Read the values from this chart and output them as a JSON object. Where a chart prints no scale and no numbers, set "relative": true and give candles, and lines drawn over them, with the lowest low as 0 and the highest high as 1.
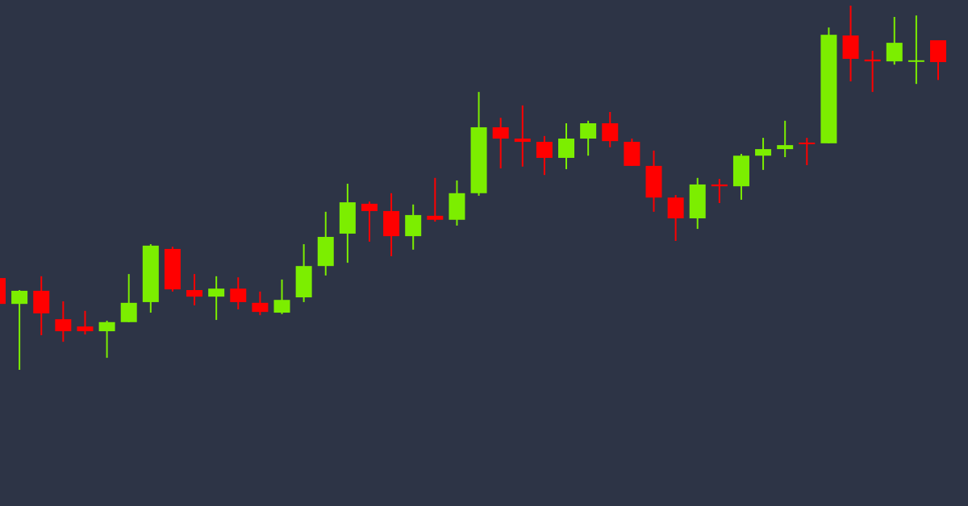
{
  "chart_data": {
    "type": "candlestick",
    "relative": true,
    "categories": [
      null,
      null,
      null,
      null,
      null,
      null,
      null,
      null,
      null,
      null,
      null,
      null,
      null,
      null,
      null,
      null,
      null,
      null,
      null,
      null,
      null,
      null,
      null,
      null,
      null,
      null,
      null,
      null,
      null,
      null,
      null,
      null,
      null,
      null,
      null,
      null,
      null,
      null,
      null,
      null,
      null,
      null,
      null,
      null
    ],
    "ohlc": [
      [
        0.252,
        0.257,
        0.175,
        0.181
      ],
      [
        0.181,
        0.219,
        0,
        0.217
      ],
      [
        0.217,
        0.257,
        0.095,
        0.155
      ],
      [
        0.139,
        0.188,
        0.077,
        0.106
      ],
      [
        0.119,
        0.162,
        0.097,
        0.106
      ],
      [
        0.106,
        0.135,
        0.033,
        0.131
      ],
      [
        0.131,
        0.263,
        0.131,
        0.184
      ],
      [
        0.186,
        0.345,
        0.157,
        0.341
      ],
      [
        0.332,
        0.338,
        0.215,
        0.221
      ],
      [
        0.219,
        0.263,
        0.177,
        0.201
      ],
      [
        0.201,
        0.257,
        0.137,
        0.223
      ],
      [
        0.223,
        0.254,
        0.166,
        0.186
      ],
      [
        0.184,
        0.215,
        0.15,
        0.159
      ],
      [
        0.157,
        0.248,
        0.153,
        0.192
      ],
      [
        0.199,
        0.345,
        0.186,
        0.285
      ],
      [
        0.285,
        0.434,
        0.259,
        0.365
      ],
      [
        0.374,
        0.511,
        0.294,
        0.46
      ],
      [
        0.456,
        0.462,
        0.352,
        0.436
      ],
      [
        0.436,
        0.485,
        0.312,
        0.367
      ],
      [
        0.367,
        0.454,
        0.33,
        0.425
      ],
      [
        0.423,
        0.527,
        0.407,
        0.412
      ],
      [
        0.412,
        0.52,
        0.396,
        0.485
      ],
      [
        0.485,
        0.763,
        0.478,
        0.666
      ],
      [
        0.666,
        0.692,
        0.553,
        0.635
      ],
      [
        0.635,
        0.726,
        0.558,
        0.626
      ],
      [
        0.626,
        0.642,
        0.535,
        0.582
      ],
      [
        0.582,
        0.677,
        0.551,
        0.635
      ],
      [
        0.635,
        0.684,
        0.588,
        0.677
      ],
      [
        0.677,
        0.708,
        0.611,
        0.628
      ],
      [
        0.626,
        0.635,
        0.56,
        0.56
      ],
      [
        0.56,
        0.602,
        0.434,
        0.473
      ],
      [
        0.473,
        0.48,
        0.354,
        0.416
      ],
      [
        0.416,
        0.527,
        0.387,
        0.509
      ],
      [
        0.509,
        0.524,
        0.458,
        0.504
      ],
      [
        0.504,
        0.593,
        0.467,
        0.588
      ],
      [
        0.588,
        0.637,
        0.549,
        0.606
      ],
      [
        0.606,
        0.684,
        0.584,
        0.617
      ],
      [
        0.624,
        0.637,
        0.562,
        0.622
      ],
      [
        0.622,
        0.94,
        0.622,
        0.92
      ],
      [
        0.918,
        1.0,
        0.792,
        0.854
      ],
      [
        0.852,
        0.876,
        0.763,
        0.847
      ],
      [
        0.847,
        0.969,
        0.838,
        0.898
      ],
      [
        0.847,
        0.973,
        0.785,
        0.85
      ],
      [
        0.905,
        0.905,
        0.796,
        0.845
      ]
    ]
  }
}
